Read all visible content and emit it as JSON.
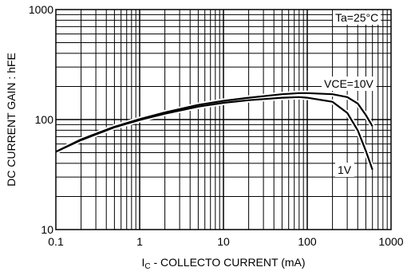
{
  "chart_data": {
    "type": "line",
    "title": "",
    "xlabel": {
      "main": "I",
      "sub": "C",
      "rest": " - COLLECTO   CURRENT  (mA)"
    },
    "ylabel": "DC CURRENT GAIN : hFE",
    "x_scale": "log",
    "y_scale": "log",
    "xlim": [
      0.1,
      1000
    ],
    "ylim": [
      10,
      1000
    ],
    "x_ticks": [
      "0.1",
      "1",
      "10",
      "100",
      "1000"
    ],
    "y_ticks": [
      "10",
      "100",
      "1000"
    ],
    "grid": true,
    "annotations": {
      "temperature": "Ta=25°C",
      "vce10": "VCE=10V",
      "v1": "1V"
    },
    "series": [
      {
        "name": "VCE=10V",
        "x": [
          0.1,
          0.2,
          0.5,
          1,
          2,
          5,
          10,
          20,
          50,
          80,
          100,
          200,
          300,
          400,
          500,
          600
        ],
        "y": [
          51,
          66,
          86,
          101,
          116,
          136,
          148,
          158,
          170,
          174,
          174,
          170,
          160,
          140,
          110,
          87
        ]
      },
      {
        "name": "1V",
        "x": [
          0.1,
          0.2,
          0.5,
          1,
          2,
          5,
          10,
          20,
          50,
          80,
          100,
          200,
          300,
          400,
          500,
          600
        ],
        "y": [
          51,
          65,
          85,
          99,
          113,
          131,
          142,
          150,
          158,
          160,
          158,
          145,
          115,
          80,
          52,
          35
        ]
      }
    ]
  }
}
